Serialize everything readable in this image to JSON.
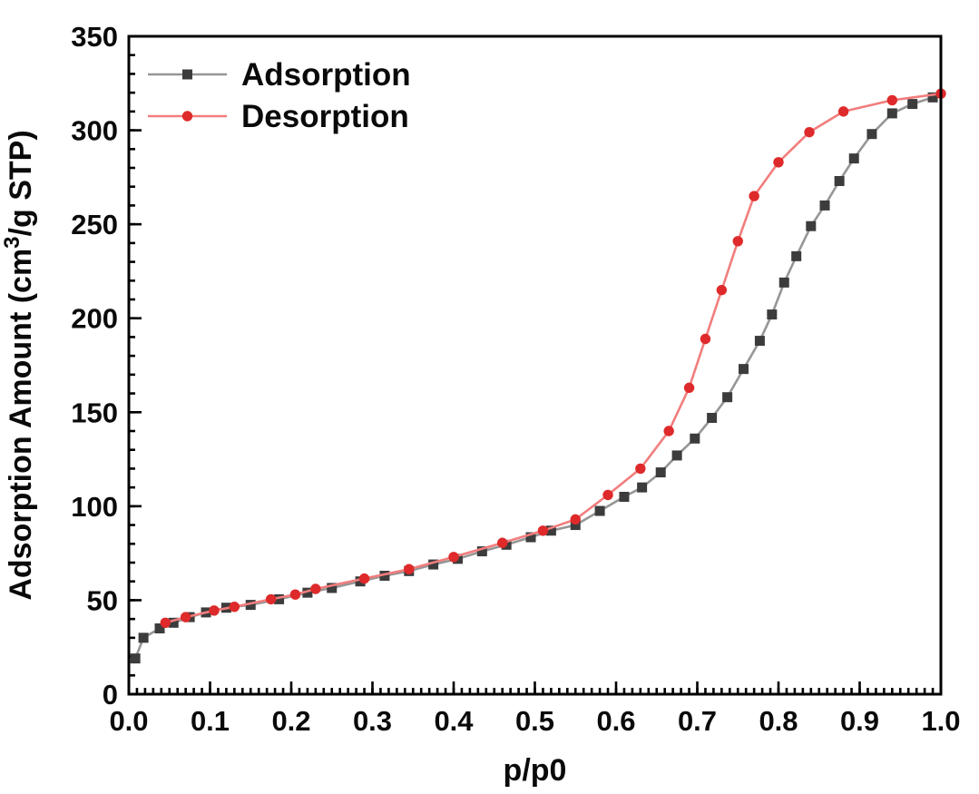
{
  "chart_data": {
    "type": "line",
    "title": "",
    "xlabel": "p/p0",
    "ylabel": "Adsorption Amount (cm³/g STP)",
    "ylabel_parts": {
      "pre": "Adsorption Amount (cm",
      "sup": "3",
      "post": "/g STP)"
    },
    "xlim": [
      0.0,
      1.0
    ],
    "ylim": [
      0,
      350
    ],
    "x_tick_values": [
      0.0,
      0.1,
      0.2,
      0.3,
      0.4,
      0.5,
      0.6,
      0.7,
      0.8,
      0.9,
      1.0
    ],
    "x_tick_labels": [
      "0.0",
      "0.1",
      "0.2",
      "0.3",
      "0.4",
      "0.5",
      "0.6",
      "0.7",
      "0.8",
      "0.9",
      "1.0"
    ],
    "x_minor_step": 0.01,
    "y_tick_values": [
      0,
      50,
      100,
      150,
      200,
      250,
      300,
      350
    ],
    "y_tick_labels": [
      "0",
      "50",
      "100",
      "150",
      "200",
      "250",
      "300",
      "350"
    ],
    "y_minor_step": 10,
    "grid": false,
    "legend_position": "top-left",
    "frame_color": "#000000",
    "series": [
      {
        "name": "Adsorption",
        "marker": "square",
        "line_color": "#969696",
        "marker_color": "#3c3c3c",
        "points": [
          [
            0.008,
            19
          ],
          [
            0.018,
            30
          ],
          [
            0.038,
            35
          ],
          [
            0.055,
            38
          ],
          [
            0.075,
            41
          ],
          [
            0.095,
            43.5
          ],
          [
            0.12,
            46
          ],
          [
            0.15,
            47.5
          ],
          [
            0.185,
            50.5
          ],
          [
            0.22,
            54
          ],
          [
            0.25,
            56.5
          ],
          [
            0.285,
            60
          ],
          [
            0.315,
            63
          ],
          [
            0.345,
            65.5
          ],
          [
            0.375,
            69
          ],
          [
            0.405,
            72
          ],
          [
            0.435,
            76
          ],
          [
            0.465,
            79.5
          ],
          [
            0.495,
            83.5
          ],
          [
            0.52,
            87
          ],
          [
            0.55,
            90
          ],
          [
            0.58,
            97.5
          ],
          [
            0.61,
            105
          ],
          [
            0.632,
            110
          ],
          [
            0.655,
            118
          ],
          [
            0.675,
            127
          ],
          [
            0.697,
            136
          ],
          [
            0.718,
            147
          ],
          [
            0.737,
            158
          ],
          [
            0.757,
            173
          ],
          [
            0.777,
            188
          ],
          [
            0.792,
            202
          ],
          [
            0.807,
            219
          ],
          [
            0.822,
            233
          ],
          [
            0.84,
            249
          ],
          [
            0.857,
            260
          ],
          [
            0.875,
            273
          ],
          [
            0.893,
            285
          ],
          [
            0.915,
            298
          ],
          [
            0.94,
            309
          ],
          [
            0.965,
            314
          ],
          [
            0.99,
            317.5
          ]
        ]
      },
      {
        "name": "Desorption",
        "marker": "circle",
        "line_color": "#f27d7d",
        "marker_color": "#de2a2a",
        "points": [
          [
            0.045,
            38
          ],
          [
            0.07,
            41
          ],
          [
            0.105,
            44.5
          ],
          [
            0.13,
            46.5
          ],
          [
            0.175,
            50.5
          ],
          [
            0.205,
            53
          ],
          [
            0.23,
            56
          ],
          [
            0.29,
            61.5
          ],
          [
            0.345,
            66.5
          ],
          [
            0.4,
            73
          ],
          [
            0.46,
            80.5
          ],
          [
            0.51,
            87
          ],
          [
            0.55,
            93
          ],
          [
            0.59,
            106
          ],
          [
            0.63,
            120
          ],
          [
            0.665,
            140
          ],
          [
            0.69,
            163
          ],
          [
            0.71,
            189
          ],
          [
            0.73,
            215
          ],
          [
            0.75,
            241
          ],
          [
            0.77,
            265
          ],
          [
            0.8,
            283
          ],
          [
            0.838,
            299
          ],
          [
            0.88,
            310
          ],
          [
            0.94,
            316
          ],
          [
            1.0,
            319.5
          ]
        ]
      }
    ]
  }
}
